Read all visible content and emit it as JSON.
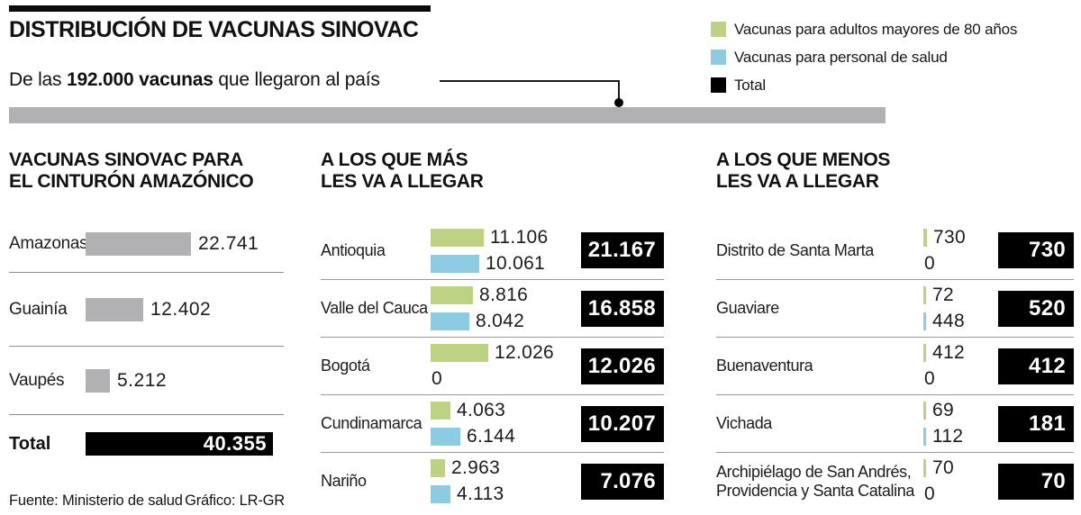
{
  "header": {
    "title": "DISTRIBUCIÓN DE VACUNAS SINOVAC",
    "subtitle_prefix": "De las ",
    "subtitle_bold": "192.000 vacunas",
    "subtitle_suffix": " que llegaron al país"
  },
  "colors": {
    "elderly_green": "#bdd383",
    "health_blue": "#8ccbe2",
    "gray_bar": "#b1b1b3",
    "total_black": "#000000"
  },
  "legend": {
    "items": [
      {
        "name": "elderly",
        "label": "Vacunas para adultos mayores de 80 años",
        "color": "#bdd383"
      },
      {
        "name": "health",
        "label": "Vacunas para personal de salud",
        "color": "#8ccbe2"
      },
      {
        "name": "total",
        "label": "Total",
        "color": "#000000"
      }
    ]
  },
  "sections": {
    "amazon": {
      "heading_line1": "VACUNAS SINOVAC PARA",
      "heading_line2": "EL CINTURÓN AMAZÓNICO",
      "rows": [
        {
          "label": "Amazonas",
          "value": 22741,
          "display": "22.741"
        },
        {
          "label": "Guainía",
          "value": 12402,
          "display": "12.402"
        },
        {
          "label": "Vaupés",
          "value": 5212,
          "display": "5.212"
        }
      ],
      "total": {
        "label": "Total",
        "value": 40355,
        "display": "40.355"
      }
    },
    "most": {
      "heading_line1": "A LOS QUE MÁS",
      "heading_line2": "LES VA A LLEGAR",
      "rows": [
        {
          "label": "Antioquia",
          "elderly": 11106,
          "elderly_display": "11.106",
          "health": 10061,
          "health_display": "10.061",
          "total_display": "21.167"
        },
        {
          "label": "Valle del Cauca",
          "elderly": 8816,
          "elderly_display": "8.816",
          "health": 8042,
          "health_display": "8.042",
          "total_display": "16.858"
        },
        {
          "label": "Bogotá",
          "elderly": 12026,
          "elderly_display": "12.026",
          "health": 0,
          "health_display": "0",
          "total_display": "12.026"
        },
        {
          "label": "Cundinamarca",
          "elderly": 4063,
          "elderly_display": "4.063",
          "health": 6144,
          "health_display": "6.144",
          "total_display": "10.207"
        },
        {
          "label": "Nariño",
          "elderly": 2963,
          "elderly_display": "2.963",
          "health": 4113,
          "health_display": "4.113",
          "total_display": "7.076"
        }
      ]
    },
    "least": {
      "heading_line1": "A LOS QUE MENOS",
      "heading_line2": "LES VA A LLEGAR",
      "rows": [
        {
          "label": "Distrito de Santa Marta",
          "elderly": 730,
          "elderly_display": "730",
          "health": 0,
          "health_display": "0",
          "total_display": "730"
        },
        {
          "label": "Guaviare",
          "elderly": 72,
          "elderly_display": "72",
          "health": 448,
          "health_display": "448",
          "total_display": "520"
        },
        {
          "label": "Buenaventura",
          "elderly": 412,
          "elderly_display": "412",
          "health": 0,
          "health_display": "0",
          "total_display": "412"
        },
        {
          "label": "Vichada",
          "elderly": 69,
          "elderly_display": "69",
          "health": 112,
          "health_display": "112",
          "total_display": "181"
        },
        {
          "label": "Archipiélago de San Andrés, Providencia y Santa Catalina",
          "elderly": 70,
          "elderly_display": "70",
          "health": 0,
          "health_display": "0",
          "total_display": "70"
        }
      ]
    }
  },
  "footer": {
    "source": "Fuente: Ministerio de salud",
    "credit": "Gráfico: LR-GR"
  },
  "chart_data": [
    {
      "type": "bar",
      "orientation": "horizontal",
      "title": "VACUNAS SINOVAC PARA EL CINTURÓN AMAZÓNICO",
      "categories": [
        "Amazonas",
        "Guainía",
        "Vaupés",
        "Total"
      ],
      "values": [
        22741,
        12402,
        5212,
        40355
      ],
      "bar_colors": [
        "#b1b1b3",
        "#b1b1b3",
        "#b1b1b3",
        "#000000"
      ],
      "data_labels": true
    },
    {
      "type": "bar",
      "orientation": "horizontal",
      "title": "A LOS QUE MÁS LES VA A LLEGAR",
      "categories": [
        "Antioquia",
        "Valle del Cauca",
        "Bogotá",
        "Cundinamarca",
        "Nariño"
      ],
      "series": [
        {
          "name": "Vacunas para adultos mayores de 80 años",
          "color": "#bdd383",
          "values": [
            11106,
            8816,
            12026,
            4063,
            2963
          ]
        },
        {
          "name": "Vacunas para personal de salud",
          "color": "#8ccbe2",
          "values": [
            10061,
            8042,
            0,
            6144,
            4113
          ]
        },
        {
          "name": "Total",
          "color": "#000000",
          "values": [
            21167,
            16858,
            12026,
            10207,
            7076
          ]
        }
      ],
      "data_labels": true
    },
    {
      "type": "bar",
      "orientation": "horizontal",
      "title": "A LOS QUE MENOS LES VA A LLEGAR",
      "categories": [
        "Distrito de Santa Marta",
        "Guaviare",
        "Buenaventura",
        "Vichada",
        "Archipiélago de San Andrés, Providencia y Santa Catalina"
      ],
      "series": [
        {
          "name": "Vacunas para adultos mayores de 80 años",
          "color": "#bdd383",
          "values": [
            730,
            72,
            412,
            69,
            70
          ]
        },
        {
          "name": "Vacunas para personal de salud",
          "color": "#8ccbe2",
          "values": [
            0,
            448,
            0,
            112,
            0
          ]
        },
        {
          "name": "Total",
          "color": "#000000",
          "values": [
            730,
            520,
            412,
            181,
            70
          ]
        }
      ],
      "data_labels": true
    }
  ]
}
